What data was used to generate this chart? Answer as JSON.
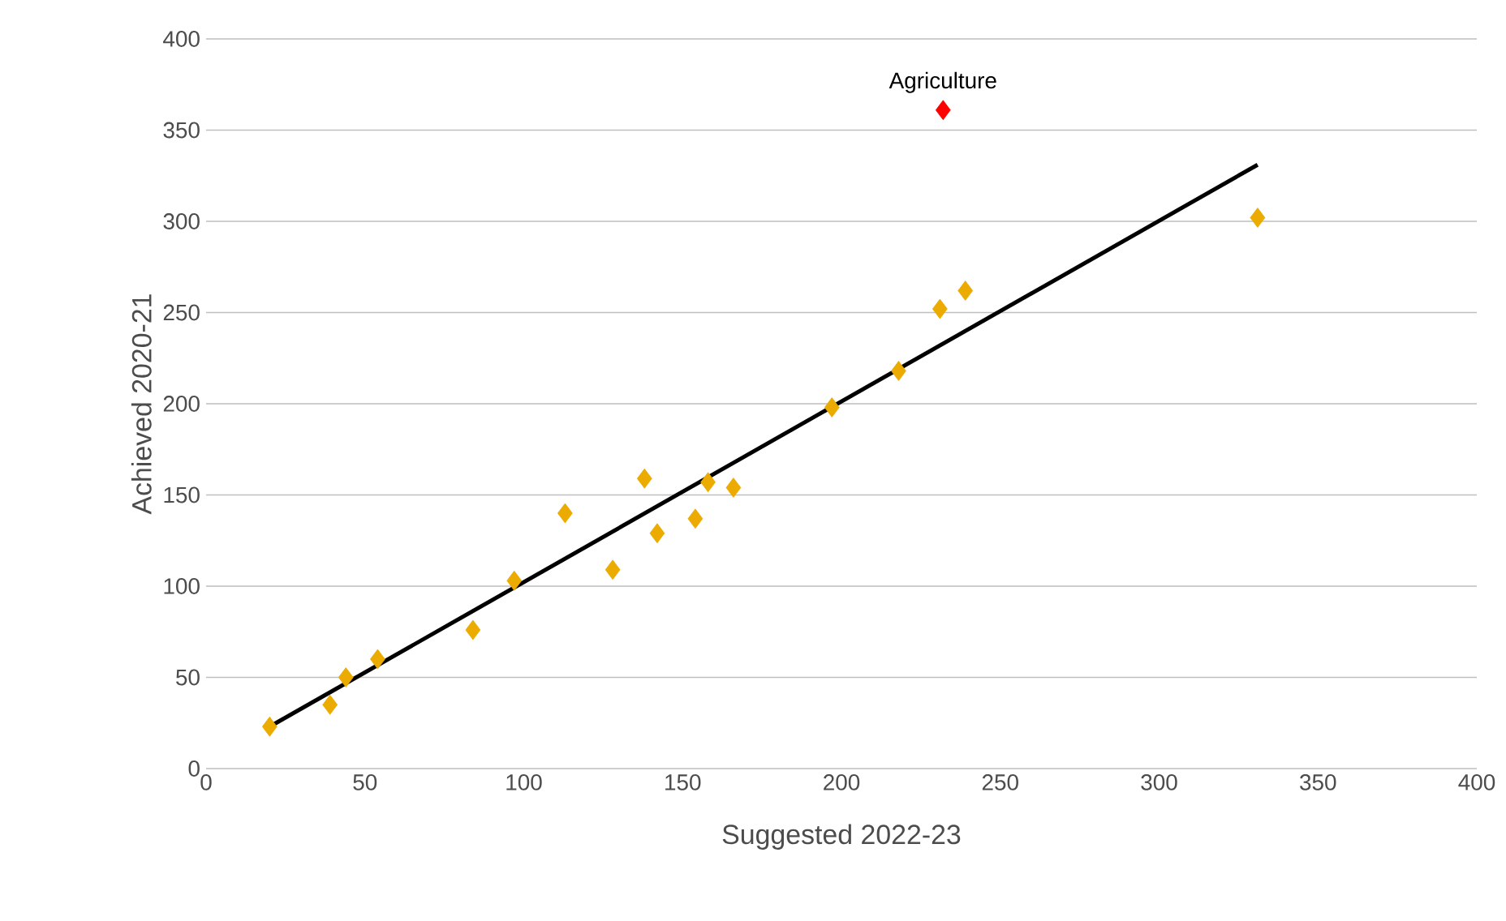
{
  "chart_data": {
    "type": "scatter",
    "xlabel": "Suggested 2022-23",
    "ylabel": "Achieved 2020-21",
    "xlim": [
      0,
      400
    ],
    "ylim": [
      0,
      400
    ],
    "xticks": [
      0,
      50,
      100,
      150,
      200,
      250,
      300,
      350,
      400
    ],
    "yticks": [
      0,
      50,
      100,
      150,
      200,
      250,
      300,
      350,
      400
    ],
    "grid": "y",
    "marker": "diamond",
    "series": [
      {
        "color": "#ebab00",
        "x": [
          20,
          39,
          44,
          54,
          84,
          97,
          113,
          128,
          138,
          142,
          154,
          158,
          166,
          197,
          218,
          231,
          239,
          331
        ],
        "values": [
          23,
          35,
          50,
          60,
          76,
          103,
          140,
          109,
          159,
          129,
          137,
          157,
          154,
          198,
          218,
          252,
          262,
          302
        ]
      },
      {
        "color": "#ff0000",
        "x": [
          232
        ],
        "values": [
          361
        ]
      },
      {
        "type": "line",
        "color": "#000000",
        "marker": "none",
        "x": [
          20,
          331
        ],
        "values": [
          23,
          331
        ]
      }
    ],
    "annotations": [
      {
        "text": "Agriculture",
        "x": 232,
        "y": 361
      }
    ]
  }
}
